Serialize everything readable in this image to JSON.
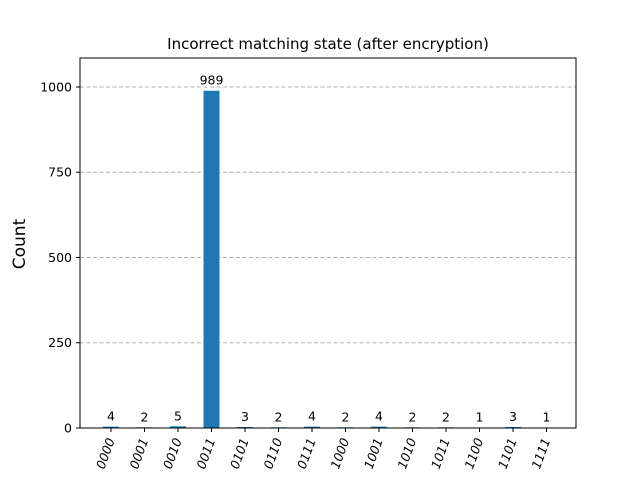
{
  "chart_data": {
    "type": "bar",
    "title": "Incorrect matching state (after encryption)",
    "xlabel": "",
    "ylabel": "Count",
    "categories": [
      "0000",
      "0001",
      "0010",
      "0011",
      "0101",
      "0110",
      "0111",
      "1000",
      "1001",
      "1010",
      "1011",
      "1100",
      "1101",
      "1111"
    ],
    "values": [
      4,
      2,
      5,
      989,
      3,
      2,
      4,
      2,
      4,
      2,
      2,
      1,
      3,
      1
    ],
    "ylim": [
      0,
      1085
    ],
    "yticks": [
      0,
      250,
      500,
      750,
      1000
    ],
    "grid": true,
    "bar_color": "#1f77b4"
  }
}
